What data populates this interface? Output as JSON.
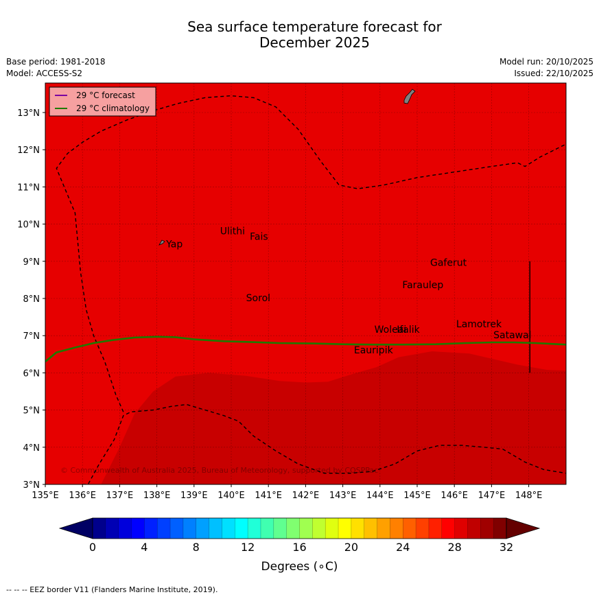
{
  "header": {
    "title_line1": "Sea surface temperature forecast for",
    "title_line2": "December 2025",
    "base_period": "Base period: 1981-2018",
    "model": "Model: ACCESS-S2",
    "model_run": "Model run: 20/10/2025",
    "issued": "Issued: 22/10/2025"
  },
  "map": {
    "lon_ticks": [
      "135°E",
      "136°E",
      "137°E",
      "138°E",
      "139°E",
      "140°E",
      "141°E",
      "142°E",
      "143°E",
      "144°E",
      "145°E",
      "146°E",
      "147°E",
      "148°E"
    ],
    "lat_ticks": [
      "3°N",
      "4°N",
      "5°N",
      "6°N",
      "7°N",
      "8°N",
      "9°N",
      "10°N",
      "11°N",
      "12°N",
      "13°N"
    ],
    "extent": {
      "lon_min": 135,
      "lon_max": 149,
      "lat_min": 3,
      "lat_max": 13.8
    },
    "colors": {
      "warm_bin": "#e60000",
      "hot_bin": "#c80000",
      "forecast_line": "#7a00a0",
      "climatology_line": "#1e7a00",
      "land": "#808080"
    },
    "places": [
      {
        "name": "Yap",
        "lon": 138.25,
        "lat": 9.45
      },
      {
        "name": "Ulithi",
        "lon": 139.7,
        "lat": 9.8
      },
      {
        "name": "Fais",
        "lon": 140.5,
        "lat": 9.65
      },
      {
        "name": "Gaferut",
        "lon": 145.35,
        "lat": 8.95
      },
      {
        "name": "Faraulep",
        "lon": 144.6,
        "lat": 8.35
      },
      {
        "name": "Sorol",
        "lon": 140.4,
        "lat": 8.0
      },
      {
        "name": "Woleai",
        "lon": 143.85,
        "lat": 7.15
      },
      {
        "name": "Ifalik",
        "lon": 144.45,
        "lat": 7.15
      },
      {
        "name": "Lamotrek",
        "lon": 146.05,
        "lat": 7.3
      },
      {
        "name": "Satawal",
        "lon": 147.05,
        "lat": 7.0
      },
      {
        "name": "Eauripik",
        "lon": 143.3,
        "lat": 6.6
      }
    ],
    "legend": [
      {
        "label": "29 °C  forecast",
        "key": "forecast"
      },
      {
        "label": "29 °C  climatology",
        "key": "climatology"
      }
    ],
    "credit": "© Commonwealth of Australia 2025, Bureau of Meteorology, supported by COSPPac"
  },
  "colorbar": {
    "tick_labels": [
      "0",
      "4",
      "8",
      "12",
      "16",
      "20",
      "24",
      "28",
      "32"
    ],
    "tick_values": [
      0,
      4,
      8,
      12,
      16,
      20,
      24,
      28,
      32
    ],
    "label": "Degrees (∘C)",
    "bins": [
      "#00008c",
      "#0000b4",
      "#0000dc",
      "#0000ff",
      "#0020ff",
      "#0040ff",
      "#0060ff",
      "#0080ff",
      "#00a0ff",
      "#00c0ff",
      "#00e0ff",
      "#00ffff",
      "#20ffd8",
      "#40ffb0",
      "#60ff90",
      "#80ff70",
      "#a0ff50",
      "#c0ff30",
      "#e0ff10",
      "#ffff00",
      "#ffe000",
      "#ffc000",
      "#ffa000",
      "#ff8000",
      "#ff6000",
      "#ff4000",
      "#ff2000",
      "#ff0000",
      "#e00000",
      "#c00000",
      "#a00000",
      "#800000"
    ],
    "under_color": "#000064",
    "over_color": "#640000"
  },
  "footer": {
    "eez_note": "--  --  -- EEZ border V11 (Flanders Marine Institute, 2019)."
  }
}
